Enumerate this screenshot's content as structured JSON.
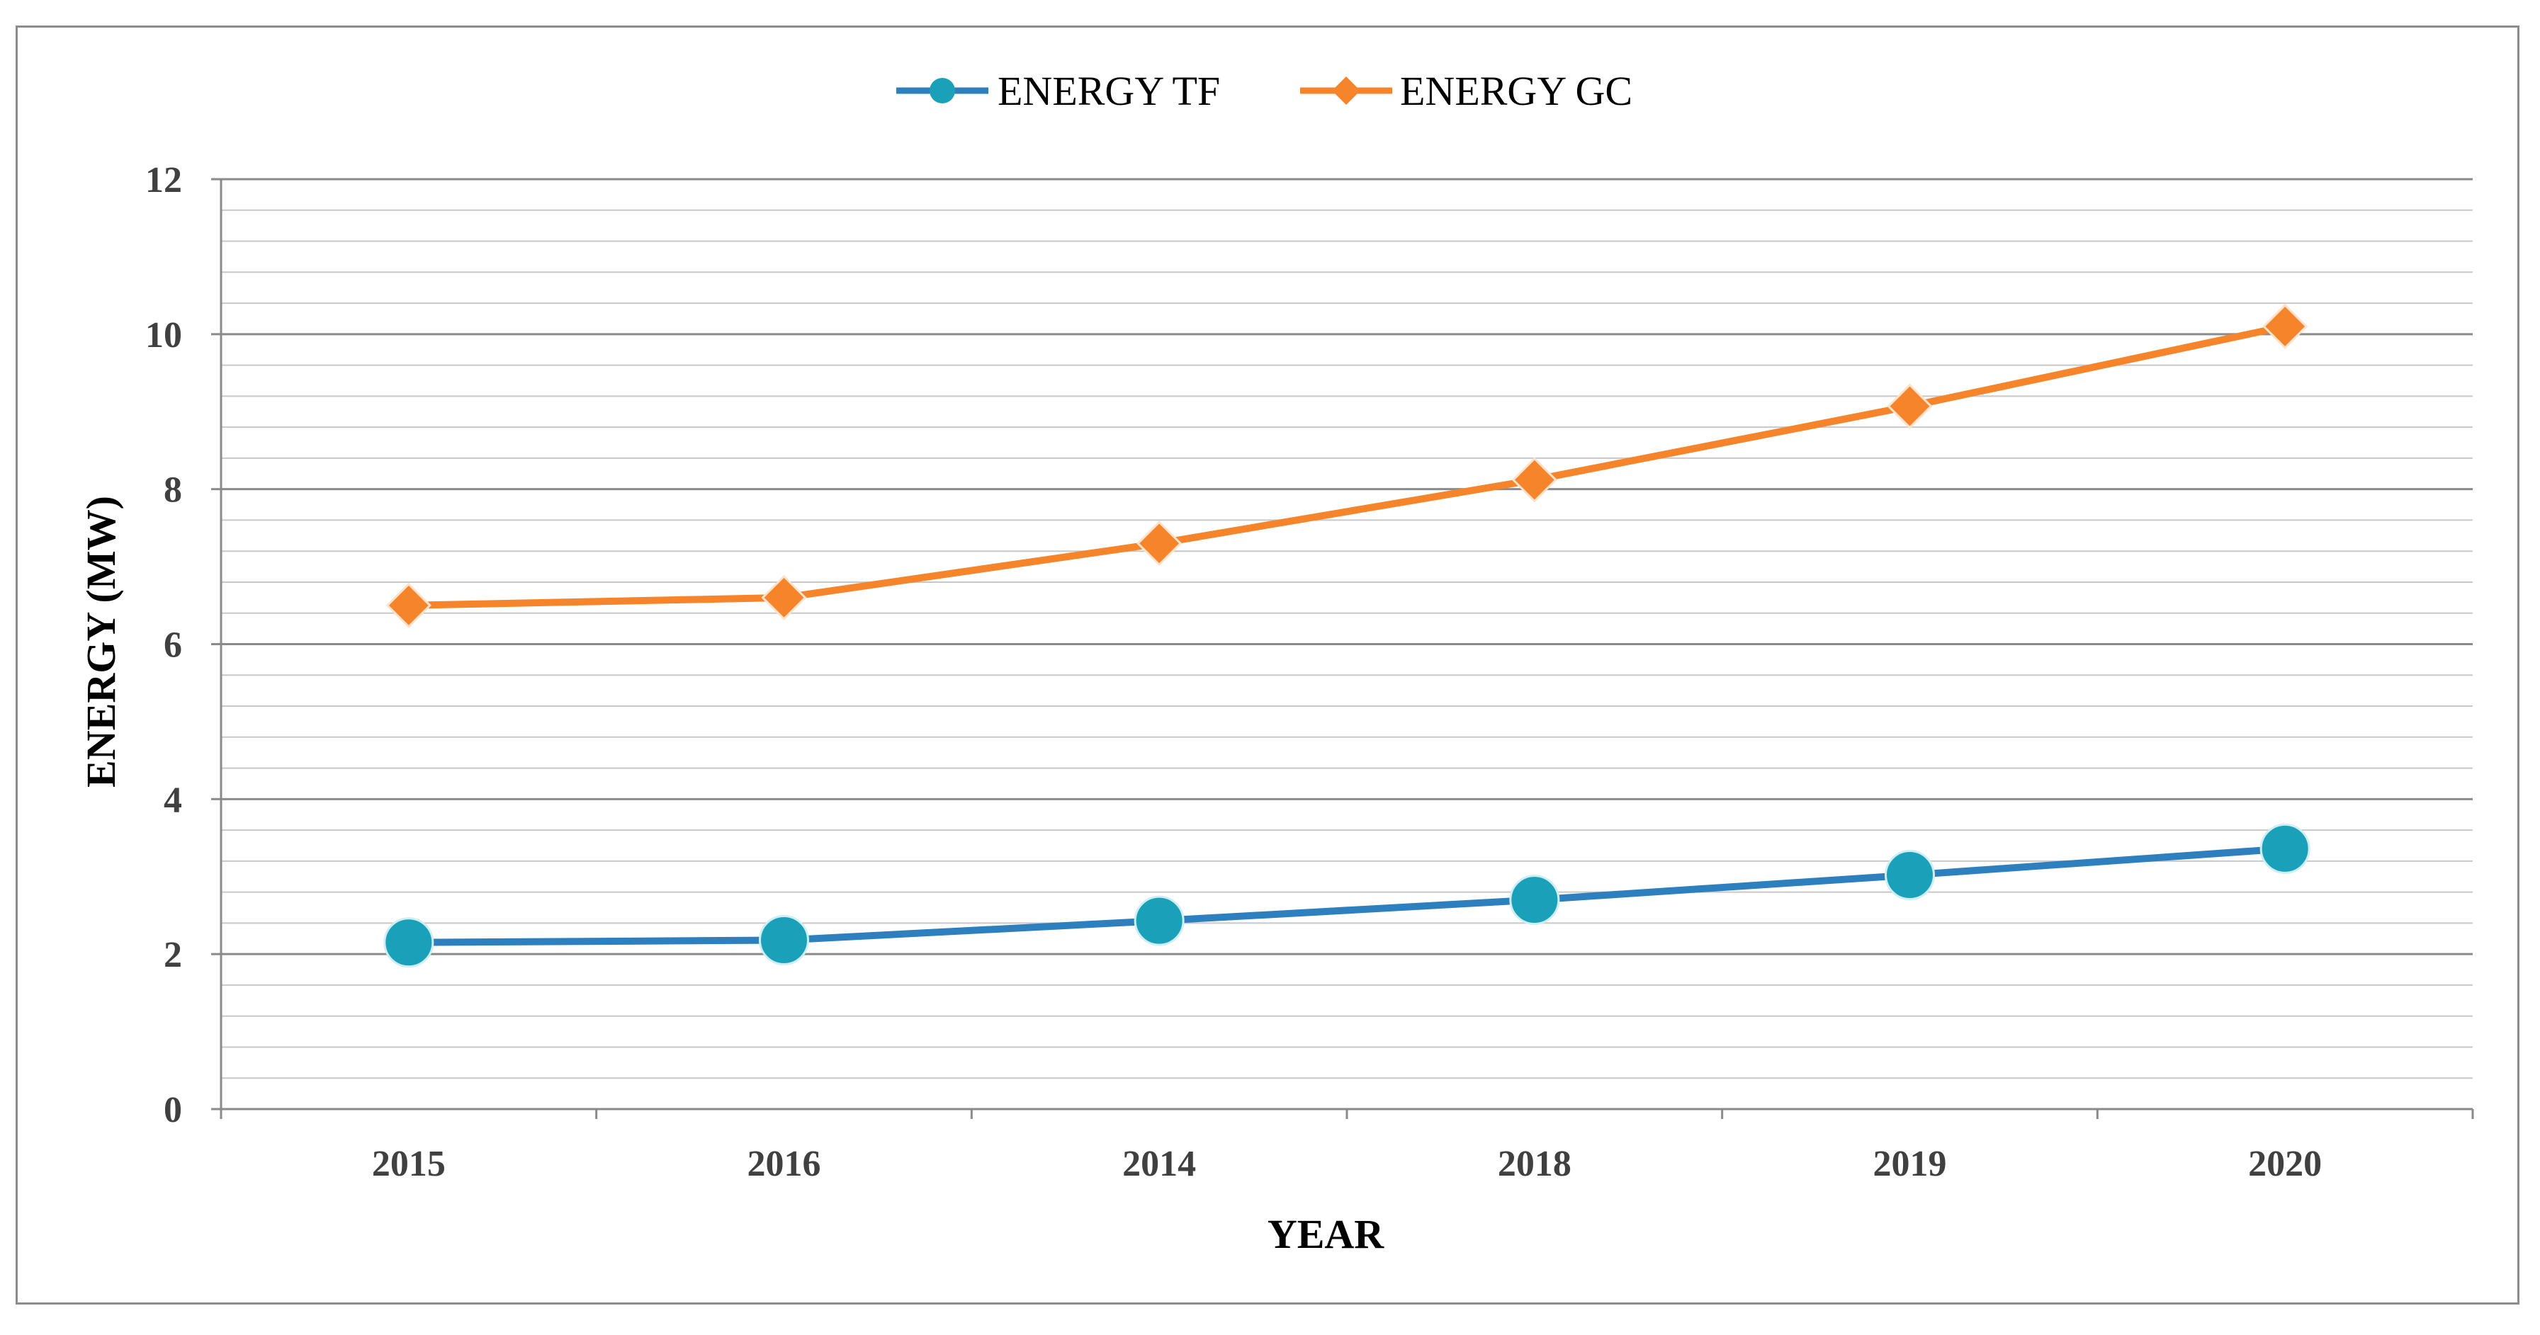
{
  "chart_data": {
    "type": "line",
    "title": "",
    "xlabel": "YEAR",
    "ylabel": "ENERGY (MW)",
    "categories": [
      "2015",
      "2016",
      "2014",
      "2018",
      "2019",
      "2020"
    ],
    "ylim": [
      0,
      12
    ],
    "y_ticks": [
      "0",
      "2",
      "4",
      "6",
      "8",
      "10",
      "12"
    ],
    "minor_grid_step": 0.4,
    "legend_position": "top-center",
    "series": [
      {
        "name": "ENERGY TF",
        "values": [
          2.15,
          2.18,
          2.43,
          2.7,
          3.02,
          3.36
        ],
        "color": "#2e7fbe",
        "marker_color": "#1aa0b8",
        "marker": "circle"
      },
      {
        "name": "ENERGY GC",
        "values": [
          6.5,
          6.6,
          7.3,
          8.12,
          9.07,
          10.1
        ],
        "color": "#f5842a",
        "marker_color": "#f5842a",
        "marker": "diamond"
      }
    ]
  }
}
